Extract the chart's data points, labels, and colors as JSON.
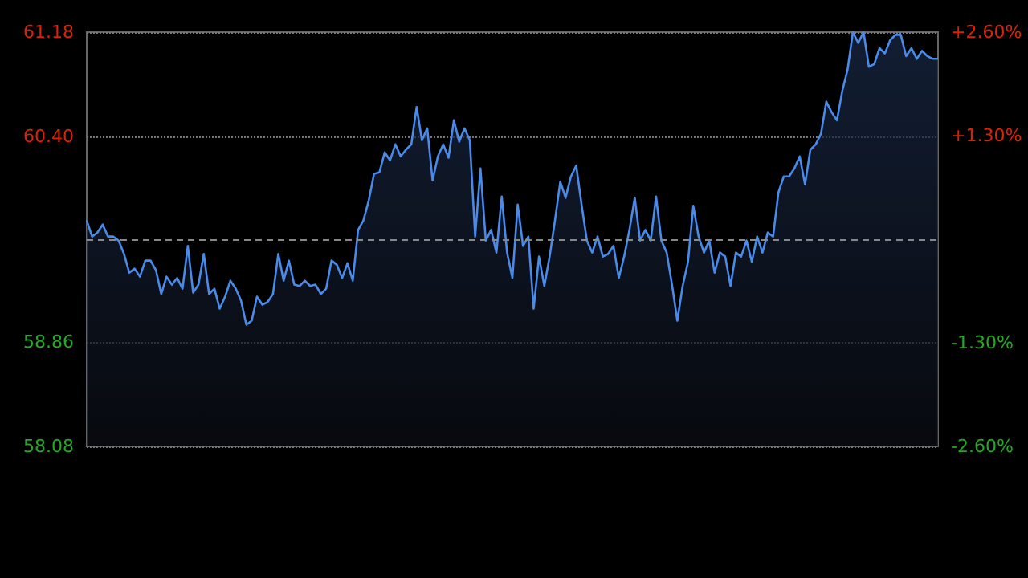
{
  "chart_data": {
    "type": "area",
    "color": "#4a8ae8",
    "values": [
      59.77,
      59.65,
      59.68,
      59.74,
      59.65,
      59.65,
      59.62,
      59.52,
      59.38,
      59.41,
      59.35,
      59.47,
      59.47,
      59.4,
      59.22,
      59.35,
      59.29,
      59.34,
      59.26,
      59.58,
      59.23,
      59.29,
      59.52,
      59.22,
      59.26,
      59.11,
      59.2,
      59.32,
      59.26,
      59.17,
      58.99,
      59.02,
      59.2,
      59.14,
      59.16,
      59.22,
      59.52,
      59.32,
      59.47,
      59.29,
      59.28,
      59.32,
      59.28,
      59.29,
      59.22,
      59.26,
      59.47,
      59.44,
      59.34,
      59.45,
      59.32,
      59.7,
      59.77,
      59.92,
      60.12,
      60.13,
      60.28,
      60.22,
      60.34,
      60.25,
      60.3,
      60.34,
      60.62,
      60.37,
      60.46,
      60.07,
      60.25,
      60.34,
      60.24,
      60.52,
      60.36,
      60.46,
      60.37,
      59.65,
      60.16,
      59.62,
      59.7,
      59.53,
      59.95,
      59.53,
      59.34,
      59.89,
      59.58,
      59.65,
      59.11,
      59.5,
      59.28,
      59.5,
      59.77,
      60.06,
      59.94,
      60.1,
      60.18,
      59.89,
      59.62,
      59.53,
      59.65,
      59.5,
      59.52,
      59.58,
      59.34,
      59.5,
      59.7,
      59.94,
      59.62,
      59.7,
      59.62,
      59.95,
      59.62,
      59.53,
      59.29,
      59.02,
      59.28,
      59.46,
      59.88,
      59.65,
      59.53,
      59.62,
      59.38,
      59.53,
      59.5,
      59.28,
      59.53,
      59.5,
      59.62,
      59.46,
      59.65,
      59.53,
      59.68,
      59.65,
      59.98,
      60.1,
      60.1,
      60.16,
      60.25,
      60.04,
      60.3,
      60.34,
      60.42,
      60.66,
      60.58,
      60.52,
      60.74,
      60.9,
      61.18,
      61.1,
      61.18,
      60.92,
      60.94,
      61.06,
      61.02,
      61.12,
      61.16,
      61.16,
      61.0,
      61.06,
      60.98,
      61.04,
      61.0,
      60.98,
      60.98
    ],
    "ylim": [
      58.08,
      61.18
    ],
    "yticks": [
      58.08,
      58.86,
      {
        "value": 60.4,
        "label": "60.40"
      },
      61.18
    ],
    "y2lim": [
      -2.6,
      2.6
    ],
    "y2ticks": [
      {
        "value": -2.6,
        "label": "-2.60%"
      },
      {
        "value": -1.3,
        "label": "-1.30%"
      },
      {
        "value": 1.3,
        "label": "+1.30%"
      },
      {
        "value": 2.6,
        "label": "+2.60%"
      }
    ],
    "ref_lines": [
      {
        "axis": "y",
        "value": 59.63,
        "line_style": "dashed",
        "color": "#888888"
      }
    ],
    "grid": "y",
    "marker": "none"
  }
}
